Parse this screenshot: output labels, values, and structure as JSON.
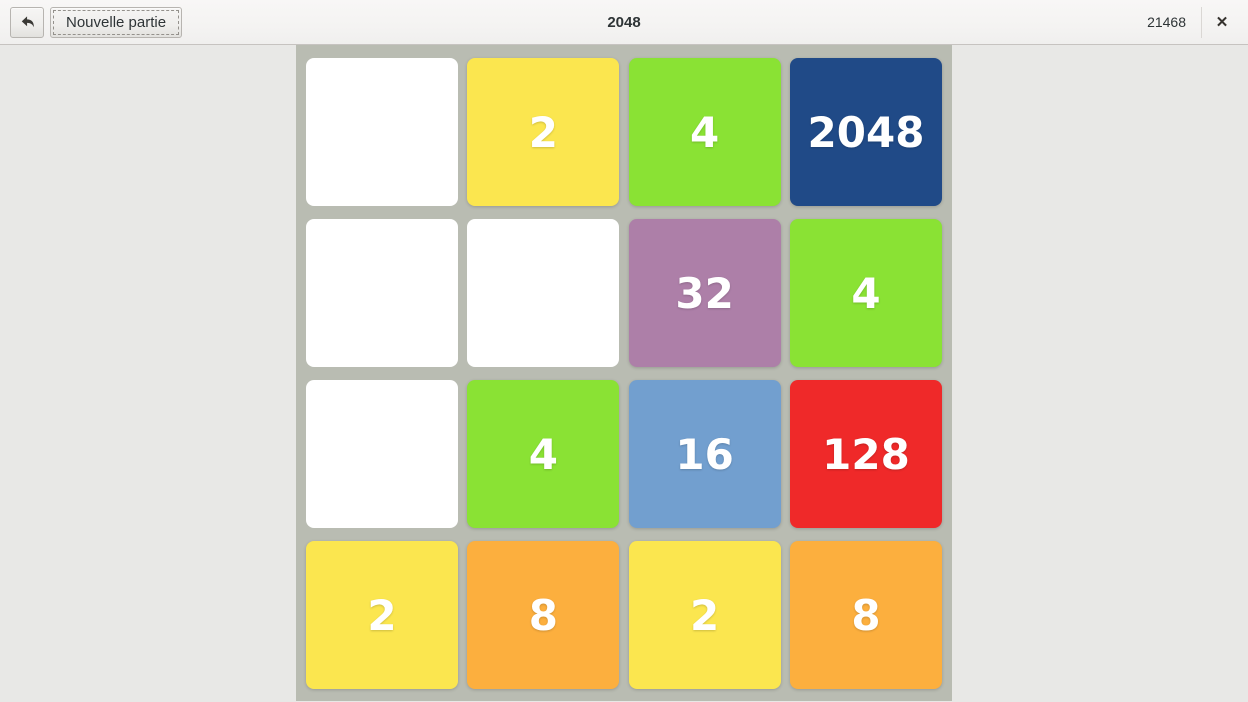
{
  "window": {
    "title": "2048",
    "score": "21468"
  },
  "header": {
    "undo_icon": "undo-arrow",
    "new_game_label": "Nouvelle partie",
    "close_icon": "✕"
  },
  "board": {
    "rows": 4,
    "cols": 4,
    "cells": [
      {
        "value": ""
      },
      {
        "value": "2"
      },
      {
        "value": "4"
      },
      {
        "value": "2048"
      },
      {
        "value": ""
      },
      {
        "value": ""
      },
      {
        "value": "32"
      },
      {
        "value": "4"
      },
      {
        "value": ""
      },
      {
        "value": "4"
      },
      {
        "value": "16"
      },
      {
        "value": "128"
      },
      {
        "value": "2"
      },
      {
        "value": "8"
      },
      {
        "value": "2"
      },
      {
        "value": "8"
      }
    ]
  },
  "colors": {
    "tile_2": "#FBE64F",
    "tile_4": "#8AE234",
    "tile_8": "#FCAF3E",
    "tile_16": "#729FCF",
    "tile_32": "#AD7FA8",
    "tile_128": "#EF2929",
    "tile_2048": "#204A87",
    "empty_cell": "#FFFFFF",
    "board_bg": "#B9BCB2",
    "window_bg": "#E8E8E6",
    "header_bg": "#F5F4F3",
    "tile_text": "#FFFFFF"
  }
}
